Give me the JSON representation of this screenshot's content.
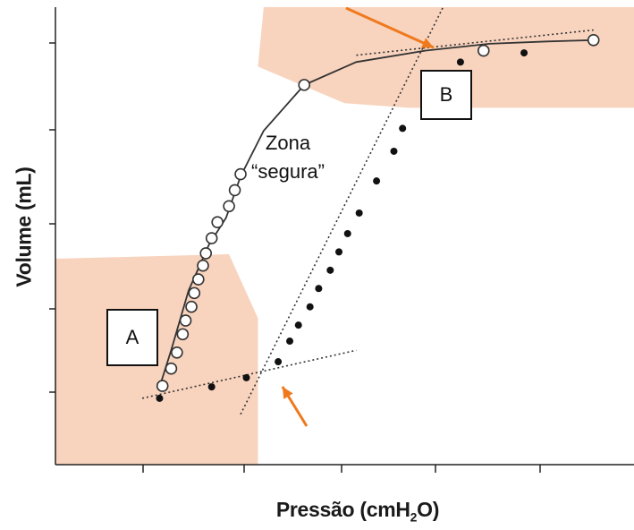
{
  "chart_data": {
    "type": "scatter",
    "title": "",
    "xlabel_prefix": "Pressão (cmH",
    "xlabel_sub": "2",
    "xlabel_suffix": "O)",
    "ylabel": "Volume (mL)",
    "x_ticks": 5,
    "y_ticks": 5,
    "xlim": [
      0,
      10
    ],
    "ylim": [
      0,
      10
    ],
    "series": [
      {
        "kind": "inflation",
        "marker": "open-circle",
        "curve": [
          [
            1.8,
            1.7
          ],
          [
            2.0,
            2.5
          ],
          [
            2.3,
            3.8
          ],
          [
            2.65,
            4.8
          ],
          [
            2.95,
            5.4
          ],
          [
            3.2,
            6.3
          ],
          [
            3.6,
            7.3
          ],
          [
            4.3,
            8.3
          ],
          [
            5.2,
            8.8
          ],
          [
            6.4,
            9.05
          ],
          [
            7.5,
            9.2
          ],
          [
            8.5,
            9.25
          ],
          [
            9.3,
            9.28
          ]
        ],
        "points": [
          [
            1.85,
            1.72
          ],
          [
            2.0,
            2.1
          ],
          [
            2.1,
            2.45
          ],
          [
            2.2,
            2.85
          ],
          [
            2.25,
            3.15
          ],
          [
            2.35,
            3.45
          ],
          [
            2.4,
            3.75
          ],
          [
            2.47,
            4.05
          ],
          [
            2.55,
            4.35
          ],
          [
            2.6,
            4.62
          ],
          [
            2.7,
            4.95
          ],
          [
            2.8,
            5.3
          ],
          [
            3.0,
            5.65
          ],
          [
            3.1,
            6.0
          ],
          [
            3.2,
            6.35
          ],
          [
            4.3,
            8.3
          ],
          [
            7.4,
            9.05
          ],
          [
            9.3,
            9.28
          ]
        ]
      },
      {
        "kind": "deflation",
        "marker": "filled-dot",
        "points": [
          [
            1.8,
            1.45
          ],
          [
            2.7,
            1.7
          ],
          [
            3.3,
            1.9
          ],
          [
            3.85,
            2.25
          ],
          [
            4.05,
            2.7
          ],
          [
            4.2,
            3.05
          ],
          [
            4.4,
            3.45
          ],
          [
            4.55,
            3.85
          ],
          [
            4.75,
            4.25
          ],
          [
            4.9,
            4.65
          ],
          [
            5.05,
            5.05
          ],
          [
            5.25,
            5.5
          ],
          [
            5.55,
            6.2
          ],
          [
            5.85,
            6.85
          ],
          [
            6.0,
            7.35
          ],
          [
            7.0,
            8.8
          ],
          [
            8.1,
            9.0
          ]
        ]
      }
    ],
    "regions": [
      {
        "label": "A",
        "polygon": [
          [
            0,
            0
          ],
          [
            0,
            4.5
          ],
          [
            3.0,
            4.6
          ],
          [
            3.5,
            3.2
          ],
          [
            3.5,
            0
          ]
        ]
      },
      {
        "label": "B",
        "polygon": [
          [
            3.5,
            8.7
          ],
          [
            3.6,
            10.0
          ],
          [
            10.0,
            10.0
          ],
          [
            10.0,
            7.8
          ],
          [
            6.1,
            7.8
          ],
          [
            5.0,
            7.9
          ]
        ]
      }
    ],
    "tangents": [
      {
        "name": "lower-asymptote",
        "from": [
          1.5,
          1.45
        ],
        "to": [
          5.2,
          2.5
        ]
      },
      {
        "name": "upper-asymptote",
        "from": [
          5.2,
          8.95
        ],
        "to": [
          9.3,
          9.5
        ]
      },
      {
        "name": "linear-segment",
        "from": [
          3.2,
          1.1
        ],
        "to": [
          6.7,
          10.0
        ]
      }
    ],
    "inflection_points": [
      {
        "label": "A",
        "x": 3.8,
        "y": 1.9
      },
      {
        "label": "B",
        "x": 6.6,
        "y": 9.0
      }
    ],
    "annotations": {
      "box_a": "A",
      "box_b": "B",
      "zone_line1": "Zona",
      "zone_line2": "“segura”"
    },
    "colors": {
      "region_fill": "#f8d3bd",
      "arrow": "#ef7a1e",
      "axis": "#222222"
    }
  }
}
